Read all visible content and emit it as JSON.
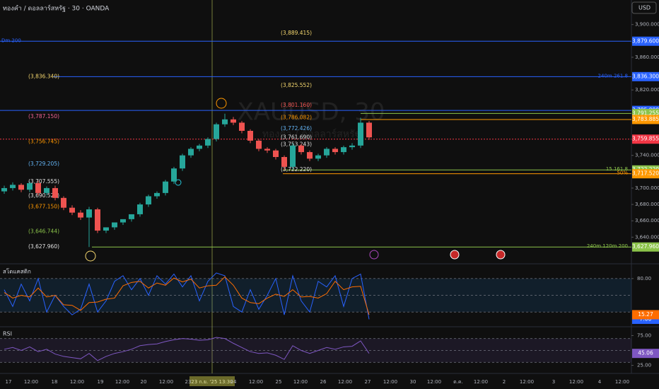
{
  "header": {
    "title": "ทองคำ / ดอลลาร์สหรัฐ · 30 · OANDA",
    "currency": "USD"
  },
  "chart_data": [
    {
      "type": "candlestick",
      "watermark": "XAUUSD, 30",
      "watermark_sub": "ทองคำ / ดอลลาร์สหรัฐ",
      "up_color": "#26a69a",
      "down_color": "#ef5350",
      "open": [
        3696,
        3700,
        3704,
        3698,
        3706,
        3694,
        3700,
        3688,
        3676,
        3670,
        3664,
        3674,
        3648,
        3652,
        3658,
        3662,
        3668,
        3680,
        3690,
        3694,
        3708,
        3724,
        3740,
        3748,
        3752,
        3760,
        3778,
        3784,
        3780,
        3770,
        3758,
        3748,
        3746,
        3738,
        3726,
        3752,
        3744,
        3736,
        3740,
        3748,
        3744,
        3750,
        3752,
        3780
      ],
      "high": [
        3703,
        3707,
        3706,
        3708,
        3709,
        3702,
        3703,
        3690,
        3679,
        3673,
        3677,
        3676,
        3652,
        3656,
        3661,
        3665,
        3682,
        3692,
        3696,
        3710,
        3726,
        3742,
        3750,
        3754,
        3762,
        3780,
        3791,
        3787,
        3782,
        3772,
        3760,
        3750,
        3748,
        3740,
        3755,
        3754,
        3746,
        3742,
        3750,
        3750,
        3752,
        3755,
        3786,
        3782
      ],
      "low": [
        3693,
        3697,
        3695,
        3695,
        3691,
        3691,
        3685,
        3673,
        3667,
        3661,
        3628,
        3645,
        3645,
        3649,
        3655,
        3659,
        3665,
        3677,
        3687,
        3691,
        3705,
        3721,
        3737,
        3745,
        3749,
        3757,
        3775,
        3777,
        3767,
        3755,
        3745,
        3743,
        3735,
        3722,
        3723,
        3741,
        3733,
        3733,
        3737,
        3741,
        3741,
        3747,
        3749,
        3759
      ],
      "close": [
        3700,
        3704,
        3698,
        3706,
        3694,
        3700,
        3688,
        3676,
        3670,
        3664,
        3674,
        3648,
        3652,
        3658,
        3662,
        3668,
        3680,
        3690,
        3694,
        3708,
        3724,
        3740,
        3748,
        3752,
        3760,
        3778,
        3784,
        3780,
        3770,
        3758,
        3748,
        3746,
        3738,
        3726,
        3752,
        3744,
        3736,
        3740,
        3748,
        3744,
        3750,
        3752,
        3780,
        3762
      ],
      "ylim": [
        3610,
        3930
      ],
      "yticks": [
        {
          "value": 3900,
          "label": "3,900.000"
        },
        {
          "value": 3860,
          "label": "3,860.000"
        },
        {
          "value": 3820,
          "label": "3,820.000"
        },
        {
          "value": 3740,
          "label": "3,740.000"
        },
        {
          "value": 3700,
          "label": "3,700.000"
        },
        {
          "value": 3680,
          "label": "3,680.000"
        },
        {
          "value": 3660,
          "label": "3,660.000"
        },
        {
          "value": 3640,
          "label": "3,640.000"
        }
      ],
      "levels": [
        {
          "value": 3879.6,
          "label": "3,879.600",
          "color": "#2962ff",
          "tag": "Dm 200"
        },
        {
          "value": 3836.3,
          "label": "3,836.300",
          "color": "#2962ff",
          "tag": "240m 261.8"
        },
        {
          "value": 3795,
          "label": "3,795.000",
          "color": "#2962ff"
        },
        {
          "value": 3791.255,
          "label": "3,791.255",
          "color": "#8bc34a"
        },
        {
          "value": 3783.885,
          "label": "3,783.885",
          "color": "#ff9800"
        },
        {
          "value": 3759.855,
          "label": "3,759.855",
          "color": "#f23645"
        },
        {
          "value": 3722.22,
          "label": "3,722.220",
          "color": "#8bc34a",
          "tag": "15 161.8"
        },
        {
          "value": 3717.52,
          "label": "3,717.520",
          "color": "#ff9800",
          "tag": "50%"
        },
        {
          "value": 3627.96,
          "label": "3,627.960",
          "color": "#8bc34a",
          "tag": "240m 120m 200"
        }
      ],
      "annotations_left": [
        {
          "value": 3836.34,
          "label": "(3,836.340)",
          "color": "#f5d76e"
        },
        {
          "value": 3787.15,
          "label": "(3,787.150)",
          "color": "#f06292"
        },
        {
          "value": 3756.745,
          "label": "(3,756.745)",
          "color": "#ff9800"
        },
        {
          "value": 3729.205,
          "label": "(3,729.205)",
          "color": "#64b5f6"
        },
        {
          "value": 3707.555,
          "label": "(3,707.555)",
          "color": "#e0e0e0"
        },
        {
          "value": 3690.522,
          "label": "(3,690.522)",
          "color": "#e0e0e0"
        },
        {
          "value": 3677.15,
          "label": "(3,677.150)",
          "color": "#ff9800"
        },
        {
          "value": 3646.744,
          "label": "(3,646.744)",
          "color": "#8bc34a"
        },
        {
          "value": 3627.96,
          "label": "(3,627.960)",
          "color": "#e0e0e0"
        }
      ],
      "annotations_mid": [
        {
          "value": 3889.415,
          "label": "(3,889.415)",
          "color": "#f5d76e"
        },
        {
          "value": 3825.552,
          "label": "(3,825.552)",
          "color": "#f5d76e"
        },
        {
          "value": 3801.16,
          "label": "(3,801.160)",
          "color": "#ef5350"
        },
        {
          "value": 3786.082,
          "label": "(3,786.082)",
          "color": "#ff9800"
        },
        {
          "value": 3772.426,
          "label": "(3,772.426)",
          "color": "#64b5f6"
        },
        {
          "value": 3761.69,
          "label": "(3,761.690)",
          "color": "#e0e0e0"
        },
        {
          "value": 3753.243,
          "label": "(3,753.243)",
          "color": "#e0e0e0"
        },
        {
          "value": 3722.22,
          "label": "(3,722.220)",
          "color": "#e0e0e0"
        }
      ]
    },
    {
      "type": "line",
      "title": "สโตแคสติก",
      "ylim": [
        0,
        100
      ],
      "band": [
        20,
        80
      ],
      "hlines": [
        80,
        50,
        20
      ],
      "yticks": [
        {
          "value": 80,
          "label": "80.00"
        }
      ],
      "series": [
        {
          "name": "%K",
          "color": "#2962ff",
          "last_label": "7.00",
          "values": [
            60,
            30,
            70,
            40,
            80,
            20,
            50,
            30,
            15,
            25,
            70,
            20,
            40,
            75,
            85,
            60,
            80,
            50,
            85,
            70,
            88,
            65,
            85,
            40,
            75,
            90,
            85,
            30,
            20,
            60,
            25,
            50,
            80,
            15,
            85,
            40,
            20,
            75,
            65,
            85,
            30,
            80,
            88,
            7
          ]
        },
        {
          "name": "%D",
          "color": "#ff6d00",
          "last_label": "15.27",
          "values": [
            55,
            45,
            50,
            47,
            63,
            47,
            50,
            33,
            32,
            23,
            37,
            38,
            43,
            45,
            67,
            73,
            75,
            63,
            72,
            68,
            81,
            74,
            79,
            63,
            67,
            68,
            83,
            68,
            45,
            37,
            35,
            45,
            52,
            48,
            60,
            47,
            48,
            45,
            53,
            75,
            60,
            65,
            66,
            15.27
          ]
        }
      ]
    },
    {
      "type": "line",
      "title": "RSI",
      "ylim": [
        15,
        85
      ],
      "band": [
        30,
        70
      ],
      "hlines": [
        70,
        50,
        30
      ],
      "yticks": [
        {
          "value": 75,
          "label": "75.00"
        },
        {
          "value": 25,
          "label": "25.00"
        }
      ],
      "series": [
        {
          "name": "RSI",
          "color": "#7e57c2",
          "last_label": "45.06",
          "values": [
            52,
            55,
            50,
            56,
            48,
            52,
            44,
            40,
            38,
            36,
            45,
            33,
            40,
            45,
            48,
            52,
            58,
            60,
            61,
            65,
            68,
            70,
            69,
            67,
            68,
            72,
            70,
            62,
            55,
            48,
            45,
            46,
            42,
            35,
            58,
            50,
            45,
            50,
            55,
            52,
            56,
            57,
            66,
            45.06
          ]
        }
      ]
    }
  ],
  "time_axis": {
    "labels": [
      "17",
      "12:00",
      "18",
      "12:00",
      "19",
      "12:00",
      "20",
      "12:00",
      "23",
      "24",
      "12:00",
      "25",
      "12:00",
      "26",
      "12:00",
      "27",
      "12:00",
      "30",
      "12:00",
      "ต.ค.",
      "12:00",
      "2",
      "12:00",
      "3",
      "12:00",
      "4",
      "12:00"
    ],
    "crosshair_label": "23 ก.ย. '25 13:30"
  }
}
